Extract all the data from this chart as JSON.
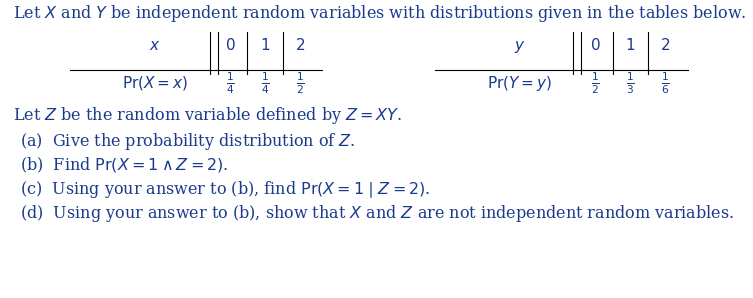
{
  "bg_color": "#ffffff",
  "text_color": "#1a3a8c",
  "black": "#000000",
  "line1": "Let $X$ and $Y$ be independent random variables with distributions given in the tables below.",
  "line2": "Let $Z$ be the random variable defined by $Z = XY$.",
  "item_a": "(a)  Give the probability distribution of $Z$.",
  "item_b": "(b)  Find $\\mathrm{Pr}(X = 1 \\wedge Z = 2)$.",
  "item_c": "(c)  Using your answer to (b), find $\\mathrm{Pr}(X = 1 \\mid Z = 2)$.",
  "item_d": "(d)  Using your answer to (b), show that $X$ and $Z$ are not independent random variables.",
  "table1_header": [
    "$x$",
    "$0$",
    "$1$",
    "$2$"
  ],
  "table1_row_label": "$\\mathrm{Pr}(X = x)$",
  "table1_probs": [
    "$\\frac{1}{4}$",
    "$\\frac{1}{4}$",
    "$\\frac{1}{2}$"
  ],
  "table2_header": [
    "$y$",
    "$0$",
    "$1$",
    "$2$"
  ],
  "table2_row_label": "$\\mathrm{Pr}(Y = y)$",
  "table2_probs": [
    "$\\frac{1}{2}$",
    "$\\frac{1}{3}$",
    "$\\frac{1}{6}$"
  ],
  "fs_main": 11.5,
  "fs_table": 11.0,
  "fig_w": 7.53,
  "fig_h": 2.98
}
